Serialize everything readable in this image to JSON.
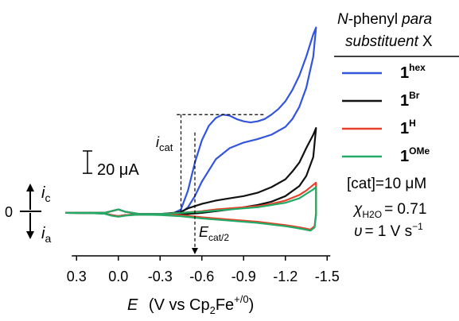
{
  "chart_data": {
    "type": "line",
    "xlabel_var": "E",
    "xlabel_text": "(V vs Cp",
    "xlabel_sub": "2",
    "xlabel_mid": "Fe",
    "xlabel_sup": "+/0",
    "xlabel_end": ")",
    "x_ticks": [
      "0.3",
      "0.0",
      "-0.3",
      "-0.6",
      "-0.9",
      "-1.2",
      "-1.5"
    ],
    "x_tick_values": [
      0.3,
      0.0,
      -0.3,
      -0.6,
      -0.9,
      -1.2,
      -1.5
    ],
    "xlim": [
      0.45,
      -1.55
    ],
    "ylim": [
      -30,
      180
    ],
    "y_zero_label": "0",
    "y_ic_main": "i",
    "y_ic_sub": "c",
    "y_ia_main": "i",
    "y_ia_sub": "a",
    "scale_bar_label": "20 μA",
    "scale_bar_value": 20,
    "annotation_icat_main": "i",
    "annotation_icat_sub": "cat",
    "annotation_ecat_main": "E",
    "annotation_ecat_sub": "cat/2",
    "legend_title_line1_a": "N",
    "legend_title_line1_b": "-phenyl",
    "legend_title_line1_c": "para",
    "legend_title_line2_a": "substituent",
    "legend_title_line2_b": "X",
    "legend": [
      {
        "main": "1",
        "sup": "hex",
        "color": "#3355dd"
      },
      {
        "main": "1",
        "sup": "Br",
        "color": "#111111"
      },
      {
        "main": "1",
        "sup": "H",
        "color": "#e8402a"
      },
      {
        "main": "1",
        "sup": "OMe",
        "color": "#22aa66"
      }
    ],
    "conditions": {
      "cat": "[cat]=10 μM",
      "chi_sym": "χ",
      "chi_sub": "H2O",
      "chi_val": "= 0.71",
      "nu_sym": "υ",
      "nu_val": "= 1 V s",
      "nu_sup": "−1"
    },
    "series": [
      {
        "name": "1hex",
        "color": "#3355dd",
        "forward": [
          [
            0.38,
            0
          ],
          [
            0.2,
            0
          ],
          [
            0.1,
            0
          ],
          [
            0.05,
            1.5
          ],
          [
            0.0,
            3
          ],
          [
            -0.05,
            1
          ],
          [
            -0.15,
            -1
          ],
          [
            -0.3,
            -1
          ],
          [
            -0.4,
            0
          ],
          [
            -0.45,
            3
          ],
          [
            -0.5,
            20
          ],
          [
            -0.55,
            45
          ],
          [
            -0.6,
            65
          ],
          [
            -0.65,
            78
          ],
          [
            -0.7,
            85
          ],
          [
            -0.75,
            88
          ],
          [
            -0.8,
            87
          ],
          [
            -0.85,
            84
          ],
          [
            -0.9,
            82
          ],
          [
            -0.95,
            81
          ],
          [
            -1.0,
            82
          ],
          [
            -1.05,
            84
          ],
          [
            -1.1,
            88
          ],
          [
            -1.15,
            93
          ],
          [
            -1.2,
            100
          ],
          [
            -1.25,
            110
          ],
          [
            -1.3,
            123
          ],
          [
            -1.35,
            140
          ],
          [
            -1.4,
            160
          ],
          [
            -1.42,
            166
          ]
        ],
        "reverse": [
          [
            -1.42,
            166
          ],
          [
            -1.4,
            140
          ],
          [
            -1.35,
            112
          ],
          [
            -1.3,
            95
          ],
          [
            -1.25,
            84
          ],
          [
            -1.2,
            77
          ],
          [
            -1.1,
            70
          ],
          [
            -1.0,
            66
          ],
          [
            -0.9,
            63
          ],
          [
            -0.8,
            58
          ],
          [
            -0.7,
            48
          ],
          [
            -0.6,
            28
          ],
          [
            -0.55,
            15
          ],
          [
            -0.5,
            5
          ],
          [
            -0.45,
            0
          ],
          [
            -0.4,
            -1
          ],
          [
            -0.3,
            -1.5
          ],
          [
            -0.15,
            -1.5
          ],
          [
            -0.05,
            -2
          ],
          [
            0.0,
            -3
          ],
          [
            0.05,
            -2
          ],
          [
            0.1,
            -0.5
          ],
          [
            0.2,
            -0.2
          ],
          [
            0.38,
            0
          ]
        ]
      },
      {
        "name": "1Br",
        "color": "#111111",
        "forward": [
          [
            0.38,
            0
          ],
          [
            0.2,
            0
          ],
          [
            0.1,
            0
          ],
          [
            0.05,
            1.5
          ],
          [
            0.0,
            3
          ],
          [
            -0.05,
            1
          ],
          [
            -0.15,
            -1
          ],
          [
            -0.3,
            -1
          ],
          [
            -0.4,
            0
          ],
          [
            -0.45,
            1
          ],
          [
            -0.5,
            4
          ],
          [
            -0.6,
            8
          ],
          [
            -0.7,
            11
          ],
          [
            -0.8,
            13
          ],
          [
            -0.9,
            15
          ],
          [
            -1.0,
            18
          ],
          [
            -1.1,
            23
          ],
          [
            -1.2,
            30
          ],
          [
            -1.25,
            37
          ],
          [
            -1.3,
            45
          ],
          [
            -1.35,
            58
          ],
          [
            -1.4,
            70
          ],
          [
            -1.42,
            76
          ]
        ],
        "reverse": [
          [
            -1.42,
            76
          ],
          [
            -1.4,
            50
          ],
          [
            -1.35,
            33
          ],
          [
            -1.3,
            24
          ],
          [
            -1.2,
            15
          ],
          [
            -1.1,
            10
          ],
          [
            -1.0,
            7
          ],
          [
            -0.9,
            5
          ],
          [
            -0.8,
            3
          ],
          [
            -0.7,
            1.5
          ],
          [
            -0.6,
            0
          ],
          [
            -0.5,
            -1
          ],
          [
            -0.3,
            -1.5
          ],
          [
            -0.15,
            -1.5
          ],
          [
            -0.05,
            -2
          ],
          [
            0.0,
            -3
          ],
          [
            0.05,
            -2
          ],
          [
            0.1,
            -0.5
          ],
          [
            0.2,
            -0.2
          ],
          [
            0.38,
            0
          ]
        ]
      },
      {
        "name": "1H",
        "color": "#e8402a",
        "forward": [
          [
            0.38,
            0
          ],
          [
            0.2,
            0
          ],
          [
            0.1,
            0
          ],
          [
            0.05,
            1.5
          ],
          [
            0.0,
            3
          ],
          [
            -0.05,
            1
          ],
          [
            -0.15,
            -1
          ],
          [
            -0.3,
            -1
          ],
          [
            -0.45,
            0
          ],
          [
            -0.6,
            1.5
          ],
          [
            -0.7,
            3
          ],
          [
            -0.8,
            4
          ],
          [
            -0.9,
            5
          ],
          [
            -1.0,
            6
          ],
          [
            -1.1,
            8
          ],
          [
            -1.2,
            11
          ],
          [
            -1.3,
            16
          ],
          [
            -1.35,
            20
          ],
          [
            -1.4,
            25
          ],
          [
            -1.42,
            27
          ]
        ],
        "reverse": [
          [
            -1.42,
            27
          ],
          [
            -1.42,
            0
          ],
          [
            -1.41,
            -12
          ],
          [
            -1.38,
            -15
          ],
          [
            -1.3,
            -13
          ],
          [
            -1.2,
            -11
          ],
          [
            -1.0,
            -8
          ],
          [
            -0.8,
            -6
          ],
          [
            -0.6,
            -4
          ],
          [
            -0.45,
            -2
          ],
          [
            -0.3,
            -1.5
          ],
          [
            -0.15,
            -1.5
          ],
          [
            -0.05,
            -2
          ],
          [
            0.0,
            -3
          ],
          [
            0.05,
            -2
          ],
          [
            0.1,
            -0.5
          ],
          [
            0.2,
            -0.2
          ],
          [
            0.38,
            0
          ]
        ]
      },
      {
        "name": "1OMe",
        "color": "#22aa66",
        "forward": [
          [
            0.38,
            0
          ],
          [
            0.2,
            0
          ],
          [
            0.1,
            0
          ],
          [
            0.05,
            1.5
          ],
          [
            0.0,
            3
          ],
          [
            -0.05,
            1
          ],
          [
            -0.15,
            -1
          ],
          [
            -0.3,
            -1
          ],
          [
            -0.45,
            0
          ],
          [
            -0.6,
            1
          ],
          [
            -0.7,
            2
          ],
          [
            -0.8,
            3
          ],
          [
            -0.9,
            4
          ],
          [
            -1.0,
            5
          ],
          [
            -1.1,
            7
          ],
          [
            -1.2,
            9
          ],
          [
            -1.3,
            13
          ],
          [
            -1.35,
            17
          ],
          [
            -1.4,
            21
          ],
          [
            -1.42,
            23
          ]
        ],
        "reverse": [
          [
            -1.42,
            23
          ],
          [
            -1.42,
            -2
          ],
          [
            -1.41,
            -13
          ],
          [
            -1.38,
            -16
          ],
          [
            -1.3,
            -14
          ],
          [
            -1.2,
            -12
          ],
          [
            -1.0,
            -9
          ],
          [
            -0.8,
            -7
          ],
          [
            -0.6,
            -5
          ],
          [
            -0.45,
            -3
          ],
          [
            -0.3,
            -2
          ],
          [
            -0.15,
            -1.5
          ],
          [
            -0.05,
            -2.5
          ],
          [
            0.0,
            -3.5
          ],
          [
            0.05,
            -2.5
          ],
          [
            0.1,
            -0.8
          ],
          [
            0.2,
            -0.3
          ],
          [
            0.38,
            0
          ]
        ]
      }
    ]
  }
}
